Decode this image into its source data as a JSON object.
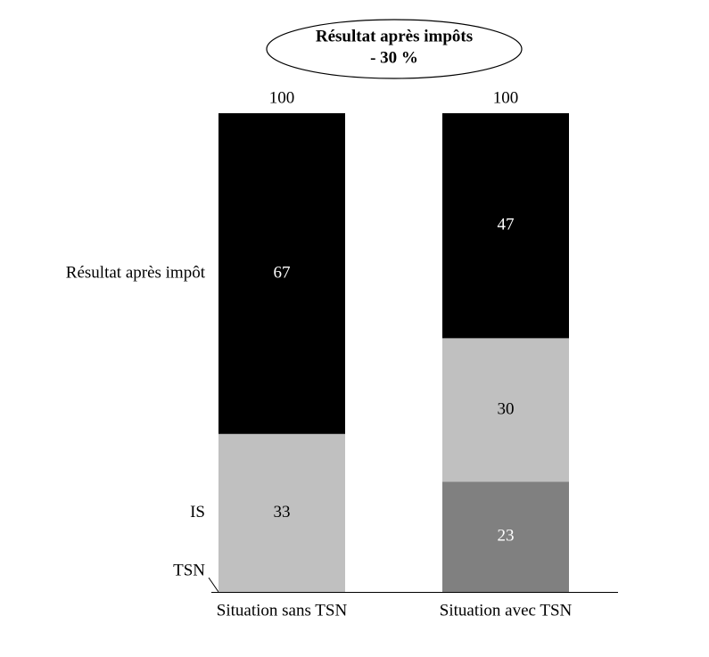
{
  "chart_data": {
    "type": "stacked_bar",
    "annotation": {
      "title": "Résultat après impôts",
      "text": "- 30 %"
    },
    "categories": [
      "Situation sans TSN",
      "Situation avec TSN"
    ],
    "totals": [
      100,
      100
    ],
    "series": [
      {
        "name": "TSN",
        "color": "#808080",
        "values": [
          0,
          23
        ]
      },
      {
        "name": "IS",
        "color": "#c0c0c0",
        "values": [
          33,
          30
        ]
      },
      {
        "name": "Résultat après impôt",
        "color": "#000000",
        "values": [
          67,
          47
        ]
      }
    ]
  }
}
